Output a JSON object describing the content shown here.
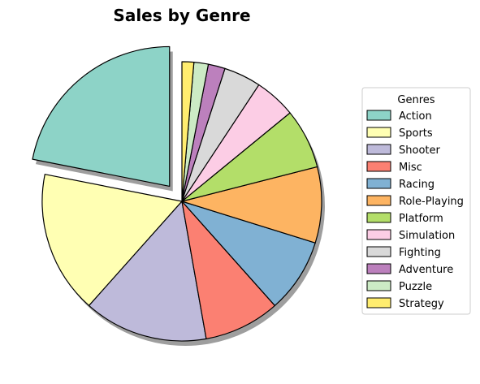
{
  "chart_data": {
    "type": "pie",
    "title": "Sales by Genre",
    "legend_title": "Genres",
    "legend_position": "right",
    "categories": [
      "Action",
      "Sports",
      "Shooter",
      "Misc",
      "Racing",
      "Role-Playing",
      "Platform",
      "Simulation",
      "Fighting",
      "Adventure",
      "Puzzle",
      "Strategy"
    ],
    "values": [
      22.4,
      16.9,
      14.7,
      9.0,
      8.8,
      9.0,
      7.1,
      4.9,
      4.4,
      2.0,
      1.7,
      1.4
    ],
    "colors": [
      "#8dd3c7",
      "#ffffb3",
      "#bebada",
      "#fb8072",
      "#80b1d3",
      "#fdb462",
      "#b3de69",
      "#fccde5",
      "#d9d9d9",
      "#bc80bd",
      "#ccebc5",
      "#ffed6f"
    ],
    "exploded": [
      "Action"
    ],
    "shadow": true,
    "start_angle_deg": 90,
    "direction": "counterclockwise"
  }
}
